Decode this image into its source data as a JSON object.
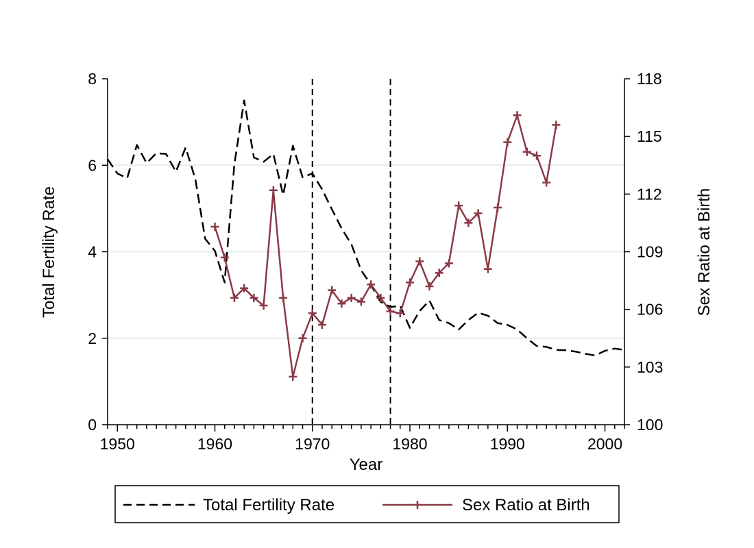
{
  "chart_data": {
    "type": "line",
    "title": "",
    "xlabel": "Year",
    "ylabel_left": "Total Fertility Rate",
    "ylabel_right": "Sex Ratio at Birth",
    "xlim": [
      1949,
      2002
    ],
    "ylim_left": [
      0,
      8
    ],
    "ylim_right": [
      100,
      118
    ],
    "x_ticks": [
      1950,
      1960,
      1970,
      1980,
      1990,
      2000
    ],
    "y_left_ticks": [
      0,
      2,
      4,
      6,
      8
    ],
    "y_right_ticks": [
      100,
      103,
      106,
      109,
      112,
      115,
      118
    ],
    "grid": "horizontal at left-axis ticks 2, 4, 6",
    "vertical_reference_lines": [
      1970,
      1978
    ],
    "legend_position": "bottom",
    "colors": {
      "tfr": "#000000",
      "srb": "#8b3a47",
      "grid": "#e4ecec"
    },
    "series": [
      {
        "name": "Total Fertility Rate",
        "axis": "left",
        "style": "dashed",
        "x": [
          1949,
          1950,
          1951,
          1952,
          1953,
          1954,
          1955,
          1956,
          1957,
          1958,
          1959,
          1960,
          1961,
          1962,
          1963,
          1964,
          1965,
          1966,
          1967,
          1968,
          1969,
          1970,
          1971,
          1972,
          1973,
          1974,
          1975,
          1976,
          1977,
          1978,
          1979,
          1980,
          1981,
          1982,
          1983,
          1984,
          1985,
          1986,
          1987,
          1988,
          1989,
          1990,
          1991,
          1992,
          1993,
          1994,
          1995,
          1996,
          1997,
          1998,
          1999,
          2000,
          2001,
          2002
        ],
        "values": [
          6.14,
          5.81,
          5.7,
          6.47,
          6.05,
          6.28,
          6.26,
          5.85,
          6.41,
          5.68,
          4.3,
          4.02,
          3.29,
          6.02,
          7.5,
          6.18,
          6.08,
          6.26,
          5.31,
          6.45,
          5.72,
          5.81,
          5.44,
          4.98,
          4.54,
          4.17,
          3.57,
          3.24,
          2.84,
          2.72,
          2.75,
          2.24,
          2.63,
          2.87,
          2.42,
          2.35,
          2.2,
          2.42,
          2.59,
          2.52,
          2.35,
          2.31,
          2.2,
          2.0,
          1.82,
          1.8,
          1.73,
          1.72,
          1.69,
          1.64,
          1.6,
          1.71,
          1.76,
          1.73
        ]
      },
      {
        "name": "Sex Ratio at Birth",
        "axis": "right",
        "style": "solid with plus markers",
        "x": [
          1960,
          1961,
          1962,
          1963,
          1964,
          1965,
          1966,
          1967,
          1968,
          1969,
          1970,
          1971,
          1972,
          1973,
          1974,
          1975,
          1976,
          1977,
          1978,
          1979,
          1980,
          1981,
          1982,
          1983,
          1984,
          1985,
          1986,
          1987,
          1988,
          1989,
          1990,
          1991,
          1992,
          1993,
          1994,
          1995
        ],
        "values": [
          110.3,
          108.7,
          106.6,
          107.1,
          106.6,
          106.2,
          112.2,
          106.6,
          102.5,
          104.5,
          105.8,
          105.2,
          107.0,
          106.3,
          106.6,
          106.4,
          107.3,
          106.6,
          105.9,
          105.8,
          107.4,
          108.5,
          107.2,
          107.9,
          108.4,
          111.4,
          110.5,
          111.0,
          108.1,
          111.3,
          114.7,
          116.1,
          114.2,
          114.0,
          112.6,
          115.6
        ]
      }
    ]
  },
  "legend": {
    "items": [
      {
        "label": "Total Fertility Rate"
      },
      {
        "label": "Sex Ratio at Birth"
      }
    ]
  }
}
